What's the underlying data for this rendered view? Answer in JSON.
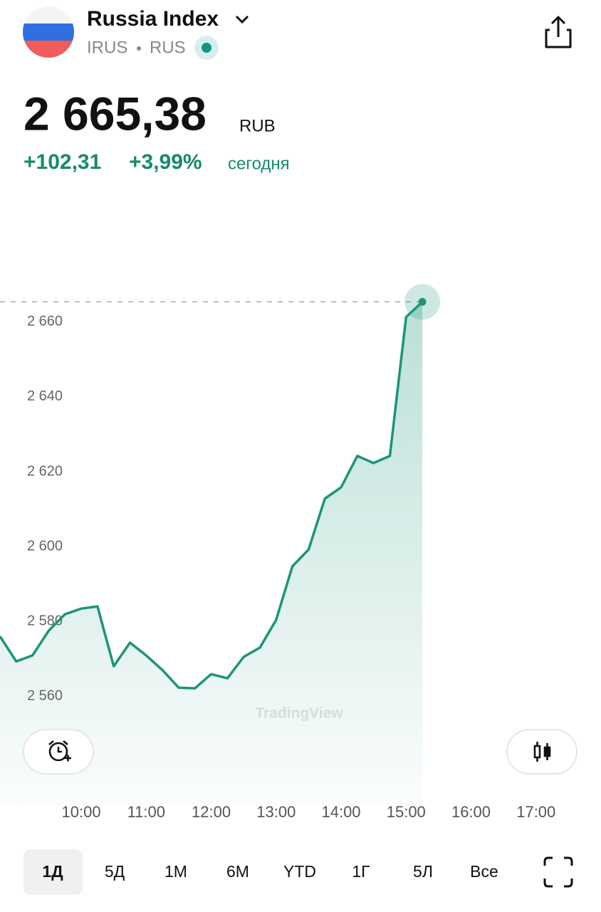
{
  "header": {
    "title": "Russia Index",
    "symbol": "IRUS",
    "exchange": "RUS",
    "price": "2 665,38",
    "currency": "RUB",
    "change": "+102,31",
    "change_percent": "+3,99%",
    "period": "сегодня"
  },
  "chart_data": {
    "type": "line",
    "color": "#1c957a",
    "x": [
      525,
      540,
      555,
      570,
      585,
      600,
      615,
      630,
      645,
      660,
      675,
      690,
      705,
      720,
      735,
      750,
      765,
      780,
      795,
      810,
      825,
      840,
      855,
      870,
      885,
      900,
      915
    ],
    "series": [
      {
        "name": "IRUS",
        "color": "#1c957a",
        "values": [
          2576.0,
          2569.3,
          2570.9,
          2577.5,
          2581.9,
          2583.4,
          2584.0,
          2568.0,
          2574.3,
          2570.9,
          2567.0,
          2562.3,
          2562.1,
          2565.9,
          2564.8,
          2570.5,
          2573.0,
          2580.4,
          2594.7,
          2599.2,
          2612.8,
          2615.8,
          2624.2,
          2622.3,
          2624.2,
          2661.3,
          2665.38
        ]
      }
    ],
    "xlim": [
      525,
      1080
    ],
    "xticks": [
      {
        "value": 600,
        "label": "10:00"
      },
      {
        "value": 660,
        "label": "11:00"
      },
      {
        "value": 720,
        "label": "12:00"
      },
      {
        "value": 780,
        "label": "13:00"
      },
      {
        "value": 840,
        "label": "14:00"
      },
      {
        "value": 900,
        "label": "15:00"
      },
      {
        "value": 960,
        "label": "16:00"
      },
      {
        "value": 1020,
        "label": "17:00"
      }
    ],
    "ylim": [
      2530.9,
      2683.2
    ],
    "yticks": [
      {
        "value": 2560,
        "label": "2 560"
      },
      {
        "value": 2580,
        "label": "2 580"
      },
      {
        "value": 2600,
        "label": "2 600"
      },
      {
        "value": 2620,
        "label": "2 620"
      },
      {
        "value": 2640,
        "label": "2 640"
      },
      {
        "value": 2660,
        "label": "2 660"
      }
    ],
    "watermark": "TradingView"
  },
  "ranges": [
    "1Д",
    "5Д",
    "1М",
    "6М",
    "YTD",
    "1Г",
    "5Л",
    "Все"
  ]
}
